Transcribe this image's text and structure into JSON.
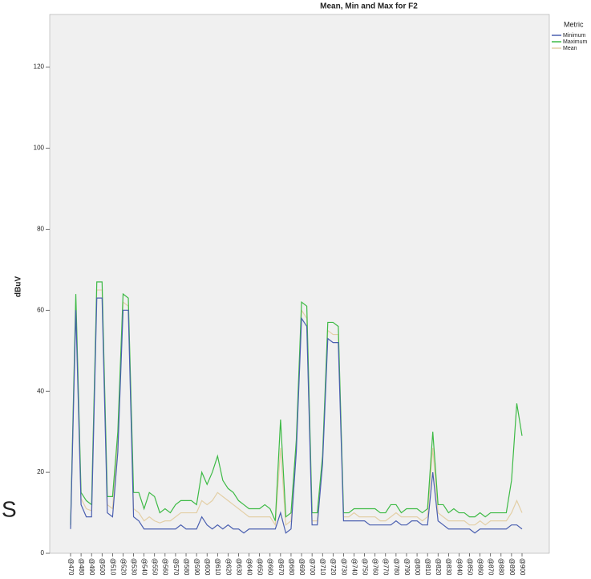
{
  "chart_data": {
    "type": "line",
    "title": "Mean, Min and Max for F2",
    "y_label": "dBuV",
    "annotation": "S",
    "legend_title": "Metric",
    "legend": "right-top",
    "grid": false,
    "categories": [
      "@470",
      null,
      "@480",
      null,
      "@490",
      null,
      "@500",
      null,
      "@510",
      null,
      "@520",
      null,
      "@530",
      null,
      "@540",
      null,
      "@550",
      null,
      "@560",
      null,
      "@570",
      null,
      "@580",
      null,
      "@590",
      null,
      "@600",
      null,
      "@610",
      null,
      "@620",
      null,
      "@630",
      null,
      "@640",
      null,
      "@650",
      null,
      "@660",
      null,
      "@670",
      null,
      "@680",
      null,
      "@690",
      null,
      "@700",
      null,
      "@710",
      null,
      "@720",
      null,
      "@730",
      null,
      "@740",
      null,
      "@750",
      null,
      "@760",
      null,
      "@770",
      null,
      "@780",
      null,
      "@790",
      null,
      "@800",
      null,
      "@810",
      null,
      "@820",
      null,
      "@830",
      null,
      "@840",
      null,
      "@850",
      null,
      "@860",
      null,
      "@870",
      null,
      "@880",
      null,
      "@890",
      null,
      "@900"
    ],
    "ylim": [
      0,
      133
    ],
    "yticks": [
      0,
      20,
      40,
      60,
      80,
      100,
      120
    ],
    "series": [
      {
        "name": "Minimum",
        "color": "#4a5fb0",
        "values": [
          6,
          60,
          12,
          9,
          9,
          63,
          63,
          10,
          9,
          25,
          60,
          60,
          9,
          8,
          6,
          6,
          6,
          6,
          6,
          6,
          6,
          7,
          6,
          6,
          6,
          9,
          7,
          6,
          7,
          6,
          7,
          6,
          6,
          5,
          6,
          6,
          6,
          6,
          6,
          6,
          10,
          5,
          6,
          25,
          58,
          56,
          7,
          7,
          22,
          53,
          52,
          52,
          8,
          8,
          8,
          8,
          8,
          7,
          7,
          7,
          7,
          7,
          8,
          7,
          7,
          8,
          8,
          7,
          7,
          20,
          8,
          7,
          6,
          6,
          6,
          6,
          6,
          5,
          6,
          6,
          6,
          6,
          6,
          6,
          7,
          7,
          6
        ]
      },
      {
        "name": "Maximum",
        "color": "#3dba45",
        "values": [
          7,
          64,
          15,
          13,
          12,
          67,
          67,
          14,
          14,
          30,
          64,
          63,
          15,
          15,
          11,
          15,
          14,
          10,
          11,
          10,
          12,
          13,
          13,
          13,
          12,
          20,
          17,
          20,
          24,
          18,
          16,
          15,
          13,
          12,
          11,
          11,
          11,
          12,
          11,
          8,
          33,
          9,
          10,
          28,
          62,
          61,
          10,
          10,
          24,
          57,
          57,
          56,
          10,
          10,
          11,
          11,
          11,
          11,
          11,
          10,
          10,
          12,
          12,
          10,
          11,
          11,
          11,
          10,
          11,
          30,
          12,
          12,
          10,
          11,
          10,
          10,
          9,
          9,
          10,
          9,
          10,
          10,
          10,
          10,
          18,
          37,
          29
        ]
      },
      {
        "name": "Mean",
        "color": "#e3cfa6",
        "values": [
          6.5,
          62,
          13.5,
          11,
          10.5,
          65,
          65,
          12,
          11,
          28,
          62,
          61,
          11,
          10,
          8,
          9,
          8,
          7.5,
          8,
          8,
          9,
          10,
          10,
          10,
          10,
          13,
          12,
          13,
          15,
          14,
          13,
          12,
          11,
          10,
          9,
          9,
          9,
          9,
          9,
          7,
          26,
          7,
          8,
          27,
          60,
          58,
          8,
          8,
          23,
          55,
          54,
          54,
          9,
          9,
          10,
          9,
          9,
          9,
          9,
          8,
          8,
          9,
          10,
          9,
          9,
          9,
          9,
          8,
          9,
          26,
          10,
          9,
          8,
          8,
          8,
          8,
          7,
          7,
          8,
          7,
          8,
          8,
          8,
          8,
          10,
          13,
          10
        ]
      }
    ]
  }
}
